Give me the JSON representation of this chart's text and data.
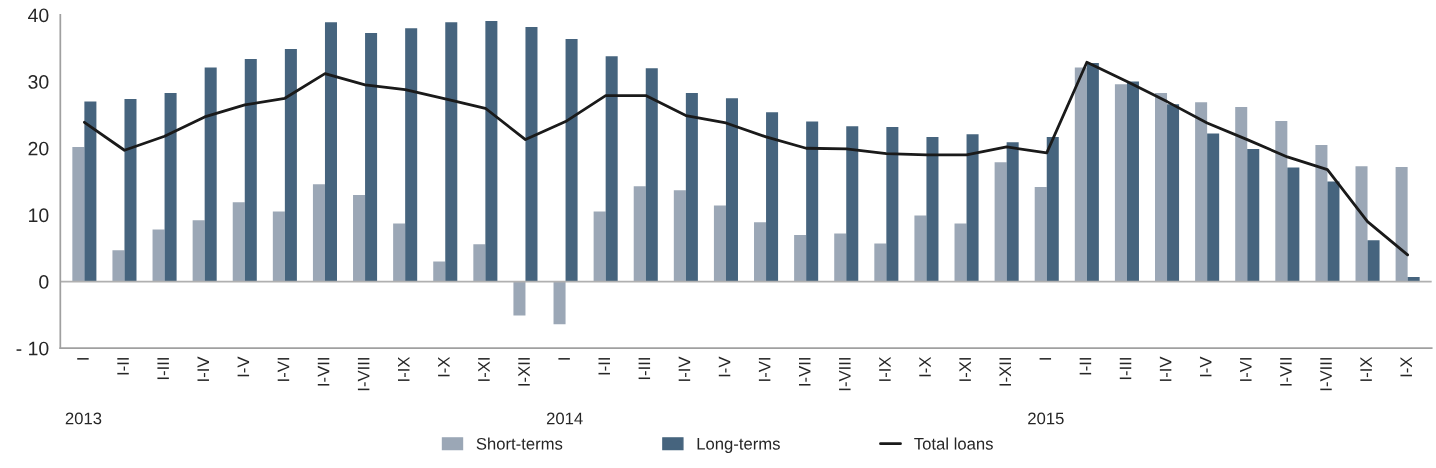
{
  "chart_data": {
    "type": "bar",
    "categories": [
      "I",
      "I-II",
      "I-III",
      "I-IV",
      "I-V",
      "I-VI",
      "I-VII",
      "I-VIII",
      "I-IX",
      "I-X",
      "I-XI",
      "I-XII",
      "I",
      "I-II",
      "I-III",
      "I-IV",
      "I-V",
      "I-VI",
      "I-VII",
      "I-VIII",
      "I-IX",
      "I-X",
      "I-XI",
      "I-XII",
      "I",
      "I-II",
      "I-III",
      "I-IV",
      "I-V",
      "I-VI",
      "I-VII",
      "I-VIII",
      "I-IX",
      "I-X"
    ],
    "series": [
      {
        "name": "Short-terms",
        "color": "#9ba7b6",
        "values": [
          20.2,
          4.7,
          7.8,
          9.2,
          11.9,
          10.5,
          14.6,
          13.0,
          8.7,
          3.0,
          5.6,
          -5.1,
          -6.4,
          10.5,
          14.3,
          13.7,
          11.4,
          8.9,
          7.0,
          7.2,
          5.7,
          9.9,
          8.7,
          17.9,
          14.2,
          32.1,
          29.6,
          28.3,
          26.9,
          26.2,
          24.1,
          20.5,
          17.3,
          17.2
        ]
      },
      {
        "name": "Long-terms",
        "color": "#46647e",
        "values": [
          27.0,
          27.4,
          28.3,
          32.1,
          33.4,
          34.9,
          38.9,
          37.3,
          38.0,
          38.9,
          39.1,
          38.2,
          36.4,
          33.8,
          32.0,
          28.3,
          27.5,
          25.4,
          24.0,
          23.3,
          23.2,
          21.7,
          22.1,
          20.9,
          21.7,
          32.8,
          30.0,
          26.6,
          22.2,
          19.9,
          17.1,
          15.0,
          6.2,
          0.7
        ]
      },
      {
        "name": "Total loans",
        "type": "line",
        "color": "#1a1a1a",
        "values": [
          23.9,
          19.7,
          21.8,
          24.7,
          26.5,
          27.5,
          31.2,
          29.5,
          28.8,
          27.4,
          26.0,
          21.3,
          24.0,
          27.9,
          27.9,
          24.9,
          23.8,
          21.7,
          20.0,
          19.9,
          19.2,
          19.0,
          19.0,
          20.2,
          19.3,
          32.9,
          30.0,
          27.0,
          23.8,
          21.3,
          18.7,
          16.8,
          9.0,
          4.0
        ]
      }
    ],
    "ylim": [
      -10,
      40
    ],
    "yticks": [
      {
        "value": -10,
        "label": "- 10"
      },
      0,
      10,
      20,
      30,
      40
    ],
    "annotations": [
      "2013",
      "2014",
      "2015"
    ],
    "legend": "bottom",
    "ref_lines": [
      {
        "axis": "y",
        "value": 0,
        "color": "#b0b0b0"
      }
    ],
    "grid": false
  }
}
